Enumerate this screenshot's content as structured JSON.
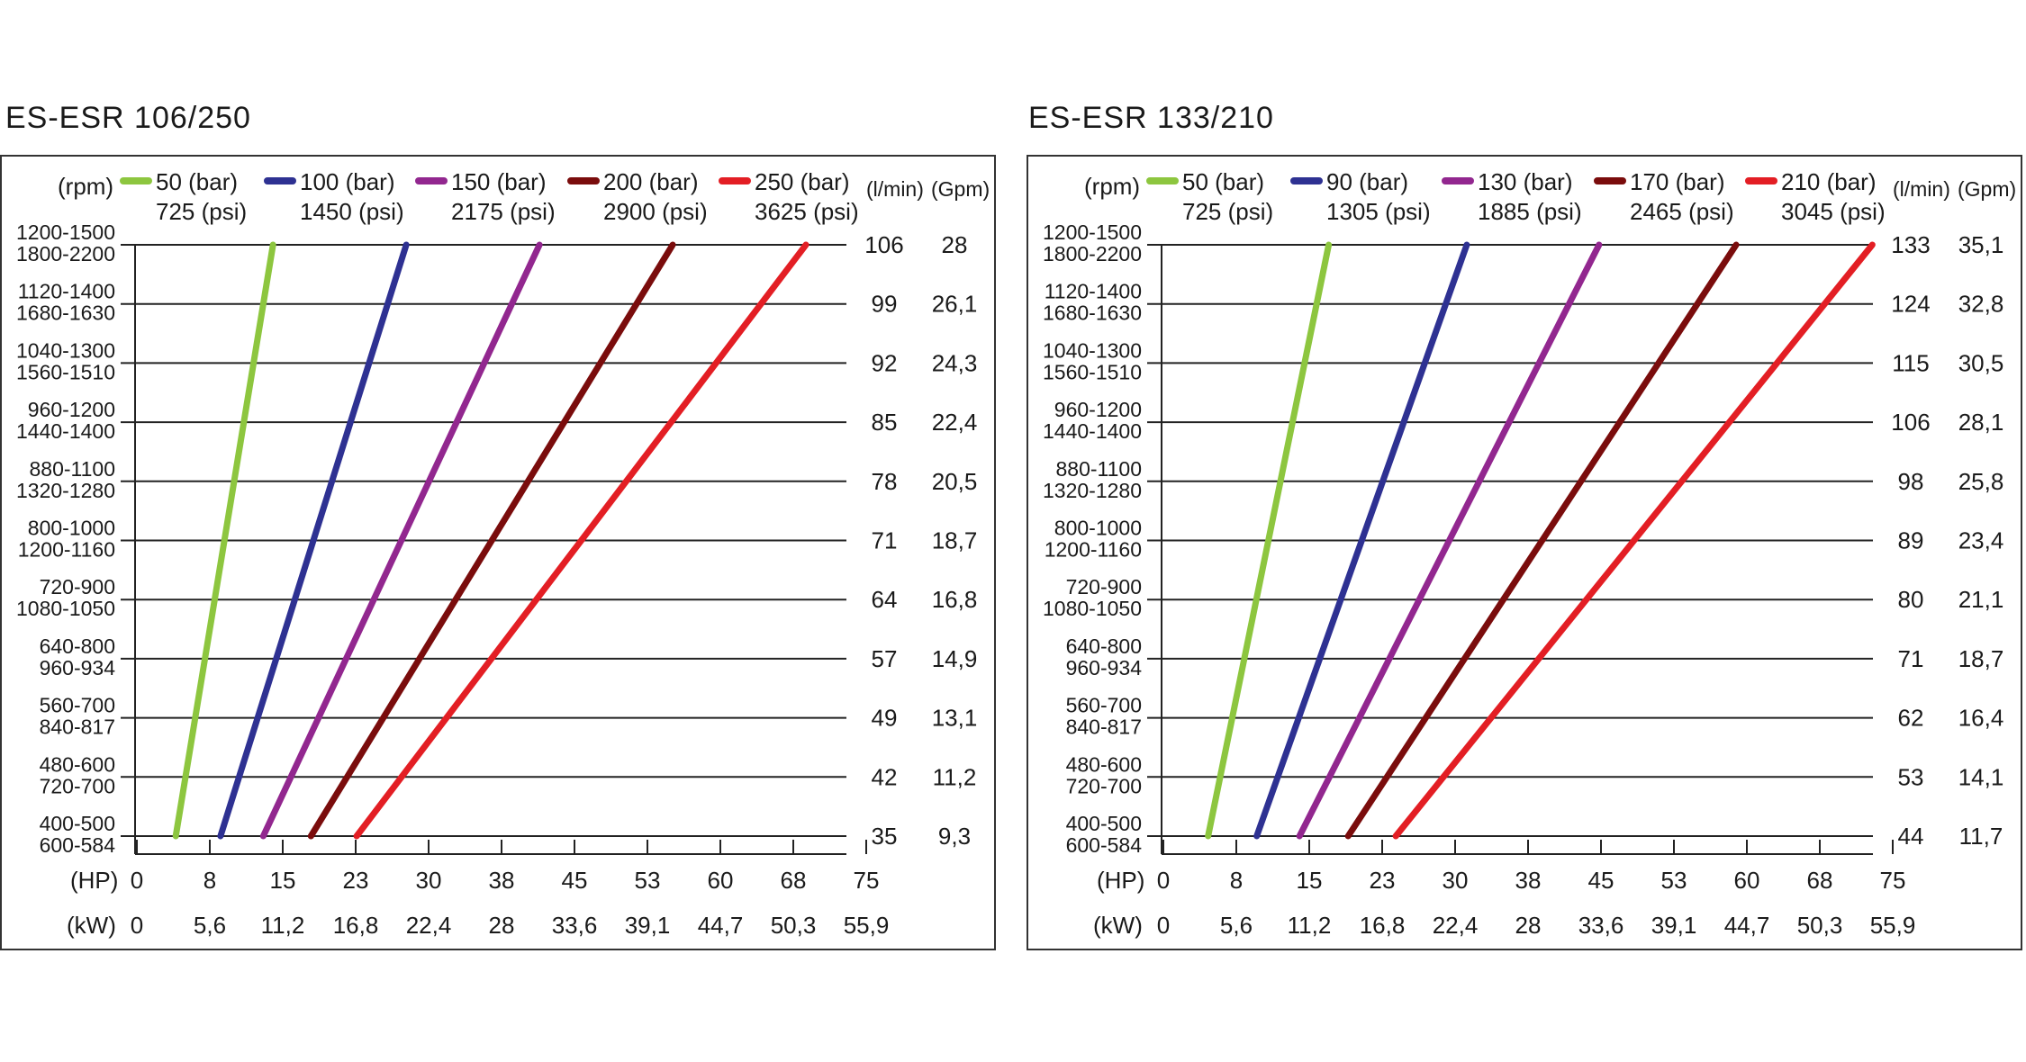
{
  "chart_data": [
    {
      "type": "line",
      "title": "ES-ESR 106/250",
      "ylabel_left": "(rpm)",
      "ylabel_right_flow": "(l/min)",
      "ylabel_right_gpm": "(Gpm)",
      "xlabel_hp": "(HP)",
      "xlabel_kw": "(kW)",
      "rows": [
        {
          "rpm1": "1200-1500",
          "rpm2": "1800-2200",
          "lmin": "106",
          "gpm": "28"
        },
        {
          "rpm1": "1120-1400",
          "rpm2": "1680-1630",
          "lmin": "99",
          "gpm": "26,1"
        },
        {
          "rpm1": "1040-1300",
          "rpm2": "1560-1510",
          "lmin": "92",
          "gpm": "24,3"
        },
        {
          "rpm1": "960-1200",
          "rpm2": "1440-1400",
          "lmin": "85",
          "gpm": "22,4"
        },
        {
          "rpm1": "880-1100",
          "rpm2": "1320-1280",
          "lmin": "78",
          "gpm": "20,5"
        },
        {
          "rpm1": "800-1000",
          "rpm2": "1200-1160",
          "lmin": "71",
          "gpm": "18,7"
        },
        {
          "rpm1": "720-900",
          "rpm2": "1080-1050",
          "lmin": "64",
          "gpm": "16,8"
        },
        {
          "rpm1": "640-800",
          "rpm2": "960-934",
          "lmin": "57",
          "gpm": "14,9"
        },
        {
          "rpm1": "560-700",
          "rpm2": "840-817",
          "lmin": "49",
          "gpm": "13,1"
        },
        {
          "rpm1": "480-600",
          "rpm2": "720-700",
          "lmin": "42",
          "gpm": "11,2"
        },
        {
          "rpm1": "400-500",
          "rpm2": "600-584",
          "lmin": "35",
          "gpm": "9,3"
        }
      ],
      "hp_ticks": [
        "0",
        "8",
        "15",
        "23",
        "30",
        "38",
        "45",
        "53",
        "60",
        "68",
        "75"
      ],
      "kw_ticks": [
        "0",
        "5,6",
        "11,2",
        "16,8",
        "22,4",
        "28",
        "33,6",
        "39,1",
        "44,7",
        "50,3",
        "55,9"
      ],
      "x_range_hp": [
        0,
        75
      ],
      "y_range_lmin": [
        35,
        106
      ],
      "series": [
        {
          "name": "50 (bar)",
          "psi": "725 (psi)",
          "color": "#8dc63f",
          "hp_start": 4,
          "hp_end": 14,
          "lmin_start": 35,
          "lmin_end": 106
        },
        {
          "name": "100 (bar)",
          "psi": "1450 (psi)",
          "color": "#2e3192",
          "hp_start": 8.6,
          "hp_end": 27.7,
          "lmin_start": 35,
          "lmin_end": 106
        },
        {
          "name": "150 (bar)",
          "psi": "2175 (psi)",
          "color": "#92278f",
          "hp_start": 13,
          "hp_end": 41.4,
          "lmin_start": 35,
          "lmin_end": 106
        },
        {
          "name": "200 (bar)",
          "psi": "2900 (psi)",
          "color": "#7a0c0c",
          "hp_start": 17.9,
          "hp_end": 55.1,
          "lmin_start": 35,
          "lmin_end": 106
        },
        {
          "name": "250 (bar)",
          "psi": "3625 (psi)",
          "color": "#e31e24",
          "hp_start": 22.6,
          "hp_end": 68.8,
          "lmin_start": 35,
          "lmin_end": 106
        }
      ]
    },
    {
      "type": "line",
      "title": "ES-ESR 133/210",
      "ylabel_left": "(rpm)",
      "ylabel_right_flow": "(l/min)",
      "ylabel_right_gpm": "(Gpm)",
      "xlabel_hp": "(HP)",
      "xlabel_kw": "(kW)",
      "rows": [
        {
          "rpm1": "1200-1500",
          "rpm2": "1800-2200",
          "lmin": "133",
          "gpm": "35,1"
        },
        {
          "rpm1": "1120-1400",
          "rpm2": "1680-1630",
          "lmin": "124",
          "gpm": "32,8"
        },
        {
          "rpm1": "1040-1300",
          "rpm2": "1560-1510",
          "lmin": "115",
          "gpm": "30,5"
        },
        {
          "rpm1": "960-1200",
          "rpm2": "1440-1400",
          "lmin": "106",
          "gpm": "28,1"
        },
        {
          "rpm1": "880-1100",
          "rpm2": "1320-1280",
          "lmin": "98",
          "gpm": "25,8"
        },
        {
          "rpm1": "800-1000",
          "rpm2": "1200-1160",
          "lmin": "89",
          "gpm": "23,4"
        },
        {
          "rpm1": "720-900",
          "rpm2": "1080-1050",
          "lmin": "80",
          "gpm": "21,1"
        },
        {
          "rpm1": "640-800",
          "rpm2": "960-934",
          "lmin": "71",
          "gpm": "18,7"
        },
        {
          "rpm1": "560-700",
          "rpm2": "840-817",
          "lmin": "62",
          "gpm": "16,4"
        },
        {
          "rpm1": "480-600",
          "rpm2": "720-700",
          "lmin": "53",
          "gpm": "14,1"
        },
        {
          "rpm1": "400-500",
          "rpm2": "600-584",
          "lmin": "44",
          "gpm": "11,7"
        }
      ],
      "hp_ticks": [
        "0",
        "8",
        "15",
        "23",
        "30",
        "38",
        "45",
        "53",
        "60",
        "68",
        "75"
      ],
      "kw_ticks": [
        "0",
        "5,6",
        "11,2",
        "16,8",
        "22,4",
        "28",
        "33,6",
        "39,1",
        "44,7",
        "50,3",
        "55,9"
      ],
      "x_range_hp": [
        0,
        75
      ],
      "y_range_lmin": [
        44,
        133
      ],
      "series": [
        {
          "name": "50 (bar)",
          "psi": "725 (psi)",
          "color": "#8dc63f",
          "hp_start": 4.6,
          "hp_end": 17,
          "lmin_start": 44,
          "lmin_end": 133
        },
        {
          "name": "90 (bar)",
          "psi": "1305 (psi)",
          "color": "#2e3192",
          "hp_start": 9.6,
          "hp_end": 31.2,
          "lmin_start": 44,
          "lmin_end": 133
        },
        {
          "name": "130 (bar)",
          "psi": "1885 (psi)",
          "color": "#92278f",
          "hp_start": 14,
          "hp_end": 44.8,
          "lmin_start": 44,
          "lmin_end": 133
        },
        {
          "name": "170 (bar)",
          "psi": "2465 (psi)",
          "color": "#7a0c0c",
          "hp_start": 19,
          "hp_end": 58.9,
          "lmin_start": 44,
          "lmin_end": 133
        },
        {
          "name": "210 (bar)",
          "psi": "3045 (psi)",
          "color": "#e31e24",
          "hp_start": 23.9,
          "hp_end": 72.9,
          "lmin_start": 44,
          "lmin_end": 133
        }
      ]
    }
  ]
}
